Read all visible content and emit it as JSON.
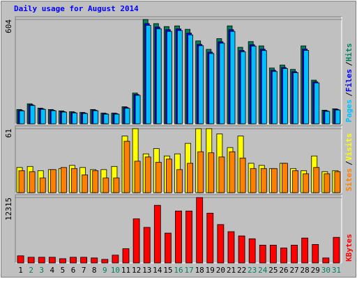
{
  "title": "Daily usage for August 2014",
  "title_color": "#0000ff",
  "legend_separator": "/",
  "chart_data": [
    {
      "type": "bar",
      "ylim": [
        0,
        604
      ],
      "yticks": [
        604
      ],
      "series": [
        {
          "name": "Hits",
          "color": "#00805c",
          "values": [
            83,
            116,
            91,
            83,
            75,
            70,
            66,
            83,
            62,
            62,
            99,
            178,
            604,
            580,
            563,
            567,
            547,
            480,
            431,
            493,
            567,
            443,
            476,
            451,
            323,
            340,
            315,
            451,
            253,
            79,
            87
          ]
        },
        {
          "name": "Files",
          "color": "#0000ff",
          "values": [
            78,
            110,
            87,
            79,
            71,
            66,
            63,
            79,
            59,
            59,
            94,
            170,
            580,
            560,
            545,
            550,
            525,
            460,
            415,
            475,
            545,
            425,
            458,
            432,
            310,
            326,
            302,
            433,
            243,
            75,
            83
          ]
        },
        {
          "name": "Pages",
          "color": "#00c0ff",
          "values": [
            75,
            106,
            84,
            76,
            68,
            63,
            60,
            76,
            56,
            56,
            90,
            165,
            570,
            550,
            535,
            540,
            515,
            452,
            407,
            467,
            535,
            417,
            450,
            424,
            303,
            320,
            296,
            425,
            237,
            72,
            80
          ]
        }
      ]
    },
    {
      "type": "bar",
      "ylim": [
        0,
        61
      ],
      "yticks": [
        61
      ],
      "series": [
        {
          "name": "Visits",
          "color": "#ffff00",
          "values": [
            24,
            25,
            21,
            22,
            23,
            26,
            24,
            22,
            22,
            25,
            54,
            61,
            37,
            42,
            35,
            37,
            47,
            61,
            61,
            56,
            43,
            54,
            28,
            26,
            23,
            28,
            23,
            21,
            35,
            20,
            21
          ]
        },
        {
          "name": "Sites",
          "color": "#ff8000",
          "values": [
            21,
            20,
            14,
            22,
            24,
            23,
            17,
            21,
            14,
            14,
            49,
            30,
            34,
            29,
            32,
            22,
            28,
            39,
            38,
            34,
            39,
            33,
            23,
            23,
            23,
            28,
            21,
            18,
            24,
            18,
            20
          ]
        }
      ]
    },
    {
      "type": "bar",
      "ylim": [
        0,
        12315
      ],
      "yticks": [
        12315
      ],
      "categories": [
        "1",
        "2",
        "3",
        "4",
        "5",
        "6",
        "7",
        "8",
        "9",
        "10",
        "11",
        "12",
        "13",
        "14",
        "15",
        "16",
        "17",
        "18",
        "19",
        "20",
        "21",
        "22",
        "23",
        "24",
        "25",
        "26",
        "27",
        "28",
        "29",
        "30",
        "31"
      ],
      "highlighted": [
        "2",
        "3",
        "9",
        "10",
        "16",
        "17",
        "23",
        "24",
        "30",
        "31"
      ],
      "highlight_color": "#00805c",
      "series": [
        {
          "name": "KBytes",
          "color": "#ff0000",
          "values": [
            1340,
            1070,
            1070,
            1070,
            800,
            1070,
            1070,
            940,
            670,
            1470,
            2680,
            8300,
            6700,
            10850,
            5620,
            9780,
            9780,
            12315,
            9370,
            7230,
            5890,
            5090,
            4550,
            3350,
            3350,
            2810,
            3350,
            4690,
            3480,
            940,
            4820
          ]
        }
      ]
    }
  ]
}
